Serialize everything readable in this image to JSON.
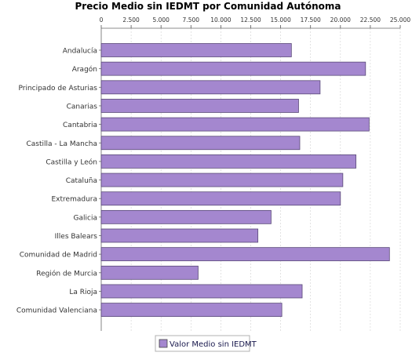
{
  "chart_data": {
    "type": "bar",
    "orientation": "horizontal",
    "title": "Precio Medio sin IEDMT por Comunidad Autónoma",
    "categories": [
      "Andalucía",
      "Aragón",
      "Principado de Asturias",
      "Canarias",
      "Cantabria",
      "Castilla - La Mancha",
      "Castilla y León",
      "Cataluña",
      "Extremadura",
      "Galicia",
      "Illes Balears",
      "Comunidad de Madrid",
      "Región de Murcia",
      "La Rioja",
      "Comunidad Valenciana"
    ],
    "series": [
      {
        "name": "Valor Medio sin IEDMT",
        "color": "#a487cf",
        "values": [
          15900,
          22100,
          18300,
          16500,
          22400,
          16600,
          21300,
          20200,
          20000,
          14200,
          13100,
          24100,
          8100,
          16800,
          15100
        ]
      }
    ],
    "x_ticks": [
      "0",
      "2.500",
      "5.000",
      "7.500",
      "10.000",
      "12.500",
      "15.000",
      "17.500",
      "20.000",
      "22.500",
      "25.000"
    ],
    "xlim": [
      0,
      25000
    ],
    "tick_step": 2500,
    "axis_position": "top",
    "grid": true,
    "legend": {
      "position": "bottom-center"
    }
  }
}
